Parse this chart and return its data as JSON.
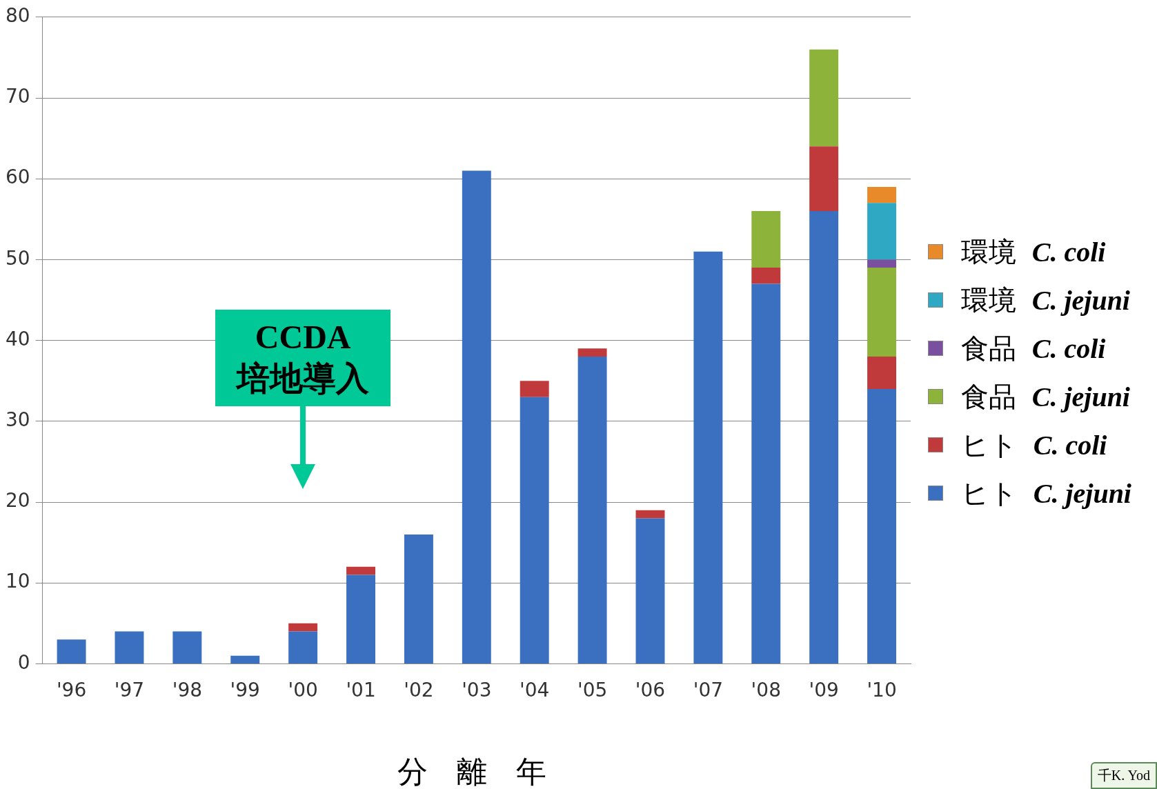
{
  "chart_data": {
    "type": "bar",
    "stacked": true,
    "xlabel": "分 離 年",
    "categories": [
      "'96",
      "'97",
      "'98",
      "'99",
      "'00",
      "'01",
      "'02",
      "'03",
      "'04",
      "'05",
      "'06",
      "'07",
      "'08",
      "'09",
      "'10"
    ],
    "series": [
      {
        "name": "ヒト C. jejuni",
        "color": "#3a70bf",
        "values": [
          3,
          4,
          4,
          1,
          4,
          11,
          16,
          61,
          33,
          38,
          18,
          51,
          47,
          56,
          34
        ]
      },
      {
        "name": "ヒト C. coli",
        "color": "#c0393b",
        "values": [
          0,
          0,
          0,
          0,
          1,
          1,
          0,
          0,
          2,
          1,
          1,
          0,
          2,
          8,
          4
        ]
      },
      {
        "name": "食品 C. jejuni",
        "color": "#8db33a",
        "values": [
          0,
          0,
          0,
          0,
          0,
          0,
          0,
          0,
          0,
          0,
          0,
          0,
          7,
          12,
          11
        ]
      },
      {
        "name": "食品 C. coli",
        "color": "#7a4fa0",
        "values": [
          0,
          0,
          0,
          0,
          0,
          0,
          0,
          0,
          0,
          0,
          0,
          0,
          0,
          0,
          1
        ]
      },
      {
        "name": "環境 C. jejuni",
        "color": "#2fa8c4",
        "values": [
          0,
          0,
          0,
          0,
          0,
          0,
          0,
          0,
          0,
          0,
          0,
          0,
          0,
          0,
          7
        ]
      },
      {
        "name": "環境 C. coli",
        "color": "#e8892a",
        "values": [
          0,
          0,
          0,
          0,
          0,
          0,
          0,
          0,
          0,
          0,
          0,
          0,
          0,
          0,
          2
        ]
      }
    ],
    "ylim": [
      0,
      80
    ],
    "yticks": [
      0,
      10,
      20,
      30,
      40,
      50,
      60,
      70,
      80
    ],
    "grid": "y",
    "legend": "right",
    "annotations": [
      "CCDA 培地導入",
      "千K. Yod"
    ]
  }
}
